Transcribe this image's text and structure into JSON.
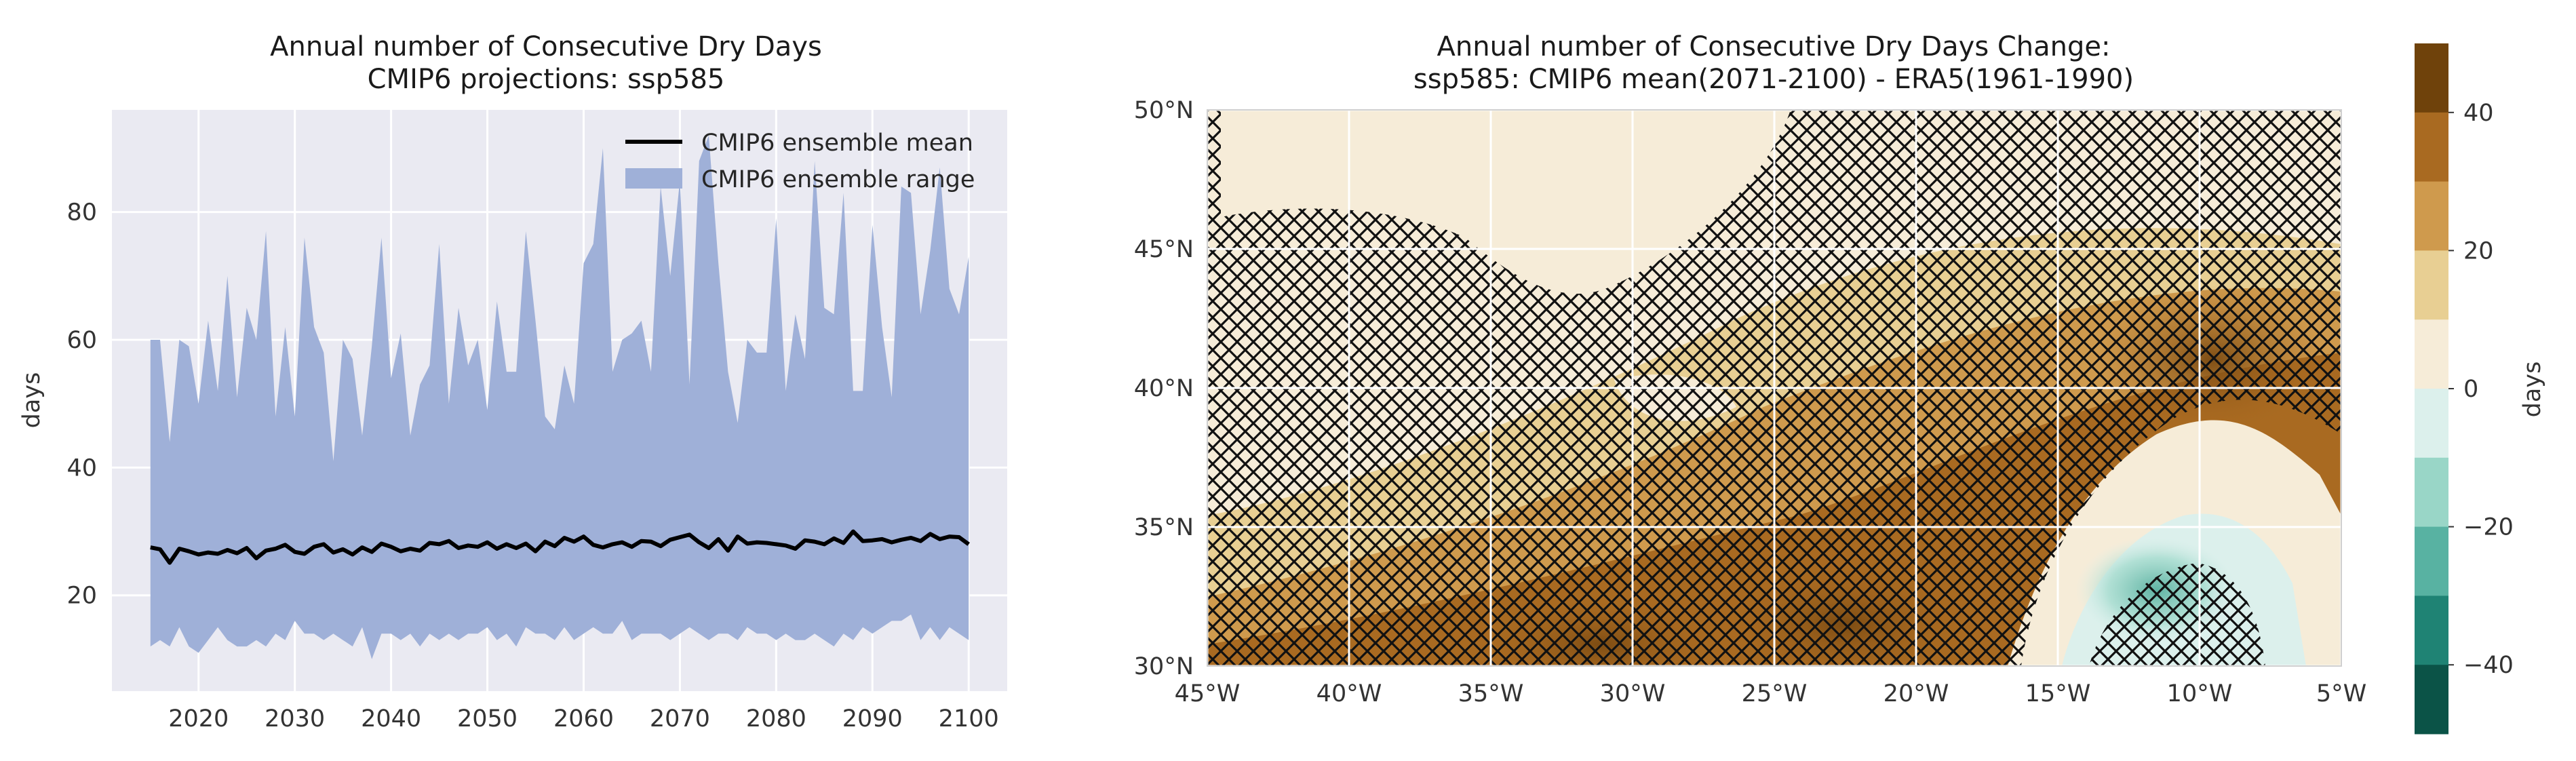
{
  "chart_data": [
    {
      "type": "area",
      "title": "Annual number of Consecutive Dry Days",
      "subtitle": "CMIP6 projections: ssp585",
      "xlabel": "",
      "ylabel": "days",
      "xlim": [
        2011,
        2104
      ],
      "ylim": [
        5,
        96
      ],
      "xticks": [
        2020,
        2030,
        2040,
        2050,
        2060,
        2070,
        2080,
        2090,
        2100
      ],
      "yticks": [
        20,
        40,
        60,
        80
      ],
      "grid": true,
      "legend_position": "top-right",
      "legend": [
        "CMIP6 ensemble mean",
        "CMIP6 ensemble range"
      ],
      "colors": {
        "mean": "#000000",
        "range": "#9fb0d8",
        "background": "#eaeaf2",
        "grid": "#ffffff"
      },
      "x": [
        2015,
        2016,
        2017,
        2018,
        2019,
        2020,
        2021,
        2022,
        2023,
        2024,
        2025,
        2026,
        2027,
        2028,
        2029,
        2030,
        2031,
        2032,
        2033,
        2034,
        2035,
        2036,
        2037,
        2038,
        2039,
        2040,
        2041,
        2042,
        2043,
        2044,
        2045,
        2046,
        2047,
        2048,
        2049,
        2050,
        2051,
        2052,
        2053,
        2054,
        2055,
        2056,
        2057,
        2058,
        2059,
        2060,
        2061,
        2062,
        2063,
        2064,
        2065,
        2066,
        2067,
        2068,
        2069,
        2070,
        2071,
        2072,
        2073,
        2074,
        2075,
        2076,
        2077,
        2078,
        2079,
        2080,
        2081,
        2082,
        2083,
        2084,
        2085,
        2086,
        2087,
        2088,
        2089,
        2090,
        2091,
        2092,
        2093,
        2094,
        2095,
        2096,
        2097,
        2098,
        2099,
        2100
      ],
      "series": [
        {
          "name": "CMIP6 ensemble mean",
          "values": [
            27.5,
            27.2,
            25.1,
            27.3,
            26.9,
            26.4,
            26.7,
            26.5,
            27.1,
            26.6,
            27.4,
            25.8,
            27.0,
            27.3,
            27.9,
            26.8,
            26.5,
            27.6,
            28.0,
            26.7,
            27.2,
            26.4,
            27.5,
            26.8,
            28.1,
            27.6,
            26.9,
            27.3,
            27.0,
            28.2,
            28.0,
            28.5,
            27.4,
            27.8,
            27.6,
            28.3,
            27.3,
            28.0,
            27.4,
            28.1,
            26.9,
            28.4,
            27.7,
            29.0,
            28.4,
            29.2,
            27.9,
            27.5,
            28.0,
            28.3,
            27.6,
            28.5,
            28.4,
            27.7,
            28.7,
            29.1,
            29.5,
            28.3,
            27.4,
            28.8,
            27.0,
            29.2,
            28.1,
            28.3,
            28.2,
            28.0,
            27.8,
            27.3,
            28.6,
            28.4,
            28.0,
            28.9,
            28.2,
            30.0,
            28.5,
            28.6,
            28.8,
            28.3,
            28.7,
            29.0,
            28.5,
            29.6,
            28.8,
            29.2,
            29.1,
            28.0
          ]
        },
        {
          "name": "CMIP6 ensemble range (max)",
          "values": [
            60,
            60,
            44,
            60,
            59,
            50,
            63,
            52,
            70,
            51,
            65,
            60,
            77,
            48,
            62,
            48,
            76,
            62,
            58,
            41,
            60,
            57,
            45,
            59,
            76,
            54,
            61,
            45,
            53,
            56,
            75,
            50,
            65,
            56,
            60,
            49,
            66,
            55,
            55,
            77,
            63,
            48,
            46,
            56,
            50,
            72,
            75,
            90,
            55,
            60,
            61,
            63,
            55,
            84,
            70,
            85,
            53,
            88,
            92,
            72,
            55,
            47,
            60,
            58,
            58,
            79,
            52,
            64,
            57,
            88,
            65,
            64,
            83,
            52,
            52,
            78,
            62,
            51,
            84,
            83,
            64,
            74,
            87,
            68,
            64,
            73
          ]
        },
        {
          "name": "CMIP6 ensemble range (min)",
          "values": [
            12,
            13,
            12,
            15,
            12,
            11,
            13,
            15,
            13,
            12,
            12,
            13,
            12,
            14,
            13,
            16,
            14,
            14,
            13,
            14,
            13,
            12,
            15,
            10,
            14,
            14,
            13,
            14,
            12,
            14,
            13,
            14,
            13,
            14,
            14,
            15,
            13,
            14,
            12,
            15,
            14,
            14,
            13,
            15,
            13,
            14,
            15,
            14,
            14,
            16,
            13,
            14,
            14,
            14,
            13,
            14,
            15,
            14,
            13,
            14,
            14,
            13,
            15,
            14,
            14,
            13,
            14,
            13,
            13,
            14,
            13,
            12,
            14,
            13,
            15,
            14,
            15,
            16,
            16,
            17,
            13,
            15,
            13,
            15,
            14,
            13
          ]
        }
      ]
    },
    {
      "type": "heatmap",
      "title": "Annual number of Consecutive Dry Days Change:",
      "subtitle": "ssp585: CMIP6 mean(2071-2100) - ERA5(1961-1990)",
      "xlim": [
        -45,
        -5
      ],
      "ylim": [
        30,
        50
      ],
      "xtick_labels": [
        "45°W",
        "40°W",
        "35°W",
        "30°W",
        "25°W",
        "20°W",
        "15°W",
        "10°W",
        "5°W"
      ],
      "ytick_labels": [
        "30°N",
        "35°N",
        "40°N",
        "45°N",
        "50°N"
      ],
      "hatching": "cross-hatched where models do not agree",
      "colorbar": {
        "label": "days",
        "ticks": [
          40,
          20,
          0,
          -20,
          -40
        ],
        "tick_labels": [
          "40",
          "20",
          "0",
          "−20",
          "−40"
        ],
        "range": [
          -50,
          50
        ],
        "bins": [
          {
            "from": 40,
            "to": 50,
            "color": "#6f420b"
          },
          {
            "from": 30,
            "to": 40,
            "color": "#a96a21"
          },
          {
            "from": 20,
            "to": 30,
            "color": "#cf9a4d"
          },
          {
            "from": 10,
            "to": 20,
            "color": "#e8cf93"
          },
          {
            "from": 0,
            "to": 10,
            "color": "#f6ecd8"
          },
          {
            "from": -10,
            "to": 0,
            "color": "#dcf0ec"
          },
          {
            "from": -20,
            "to": -10,
            "color": "#99d6c7"
          },
          {
            "from": -30,
            "to": -20,
            "color": "#58b2a2"
          },
          {
            "from": -40,
            "to": -30,
            "color": "#1f8374"
          },
          {
            "from": -50,
            "to": -40,
            "color": "#0b5347"
          }
        ]
      }
    }
  ]
}
